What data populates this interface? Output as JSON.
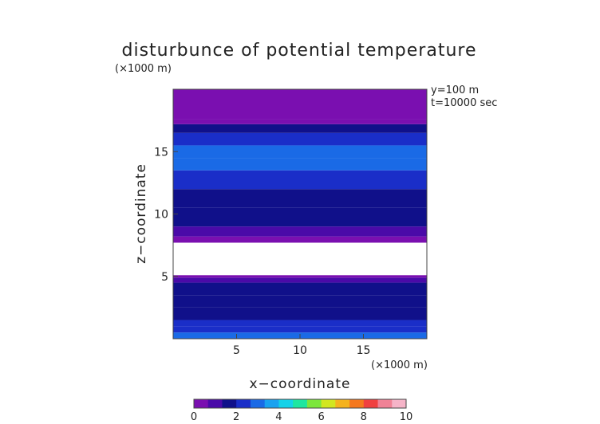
{
  "chart_data": {
    "type": "heatmap",
    "title": "disturbunce of potential temperature",
    "xlabel": "x−coordinate",
    "ylabel": "z−coordinate",
    "x_unit": "(×1000 m)",
    "y_unit": "(×1000 m)",
    "annotations": [
      "y=100 m",
      "t=10000 sec"
    ],
    "xlim": [
      0,
      20
    ],
    "ylim": [
      0,
      20
    ],
    "x_ticks": [
      5,
      10,
      15
    ],
    "y_ticks": [
      5,
      10,
      15
    ],
    "grid": false,
    "colorbar": {
      "range": [
        0,
        10
      ],
      "ticks": [
        0,
        2,
        4,
        6,
        8,
        10
      ],
      "colors": [
        "#7a0fb0",
        "#4a0aa8",
        "#10108a",
        "#1a2ec8",
        "#1a6ae6",
        "#19a2f0",
        "#14d2e8",
        "#1ee6a0",
        "#7ce63c",
        "#d2e620",
        "#f5b21e",
        "#f5781e",
        "#f04040",
        "#f08296",
        "#f5b4c8"
      ]
    },
    "bands": [
      {
        "z": [
          0.0,
          0.5
        ],
        "value": 3.2
      },
      {
        "z": [
          0.5,
          1.0
        ],
        "value": 2.6
      },
      {
        "z": [
          1.0,
          1.5
        ],
        "value": 2.1
      },
      {
        "z": [
          1.5,
          2.5
        ],
        "value": 1.8
      },
      {
        "z": [
          2.5,
          3.5
        ],
        "value": 1.6
      },
      {
        "z": [
          3.5,
          4.5
        ],
        "value": 1.4
      },
      {
        "z": [
          4.5,
          4.9
        ],
        "value": 0.8
      },
      {
        "z": [
          4.9,
          5.1
        ],
        "value": 0.3
      },
      {
        "z": [
          5.1,
          7.7
        ],
        "value": null
      },
      {
        "z": [
          7.7,
          8.2
        ],
        "value": 0.2
      },
      {
        "z": [
          8.2,
          9.0
        ],
        "value": 1.0
      },
      {
        "z": [
          9.0,
          10.5
        ],
        "value": 1.4
      },
      {
        "z": [
          10.5,
          12.0
        ],
        "value": 1.9
      },
      {
        "z": [
          12.0,
          13.5
        ],
        "value": 2.3
      },
      {
        "z": [
          13.5,
          14.5
        ],
        "value": 2.8
      },
      {
        "z": [
          14.5,
          15.5
        ],
        "value": 3.1
      },
      {
        "z": [
          15.5,
          16.5
        ],
        "value": 2.5
      },
      {
        "z": [
          16.5,
          17.2
        ],
        "value": 1.5
      },
      {
        "z": [
          17.2,
          17.6
        ],
        "value": 0.6
      },
      {
        "z": [
          17.6,
          20.0
        ],
        "value": 0.15
      }
    ]
  }
}
